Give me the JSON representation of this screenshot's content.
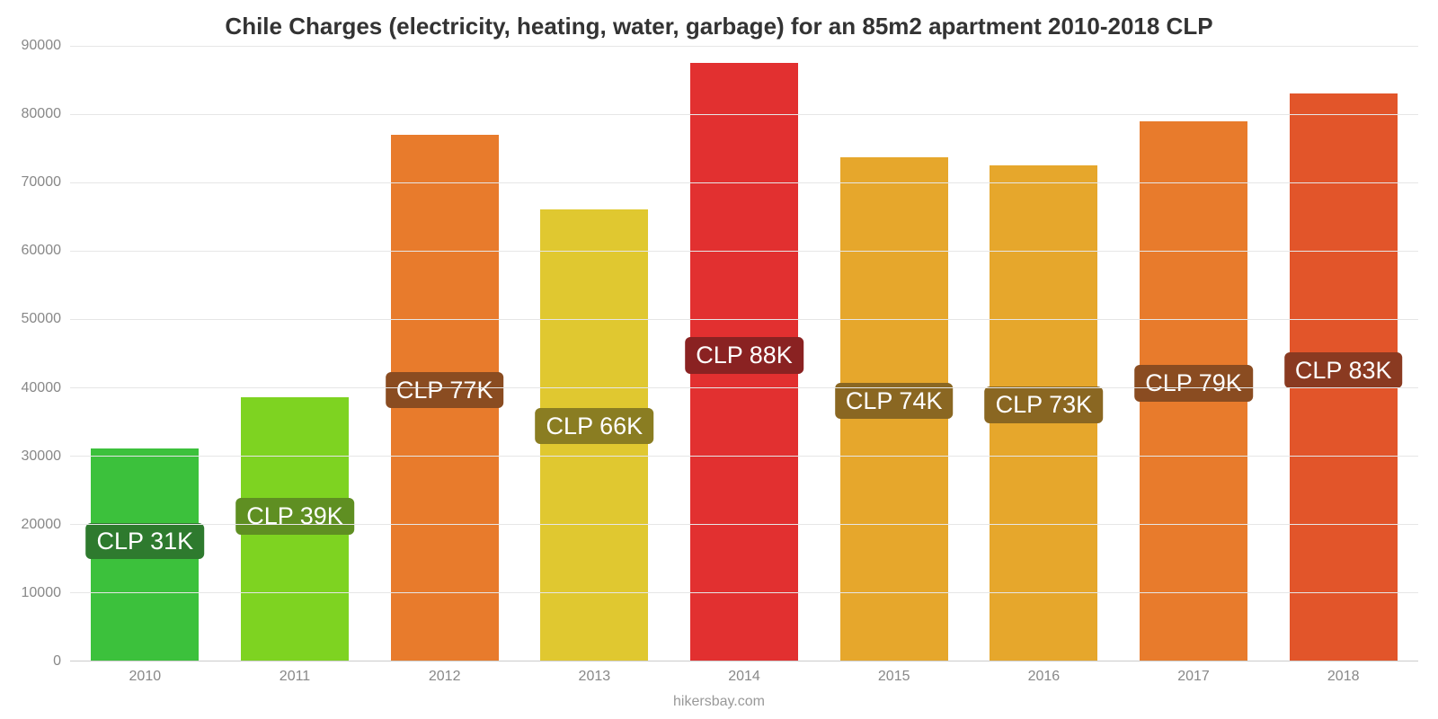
{
  "chart": {
    "type": "bar",
    "title": "Chile Charges (electricity, heating, water, garbage) for an 85m2 apartment 2010-2018 CLP",
    "title_fontsize": 26,
    "title_color": "#333333",
    "footer": "hikersbay.com",
    "footer_fontsize": 16,
    "footer_color": "#999999",
    "background_color": "#ffffff",
    "grid_color": "#e6e6e6",
    "axis_line_color": "#cccccc",
    "tick_label_color": "#888888",
    "tick_label_fontsize": 16,
    "ylim": [
      0,
      90000
    ],
    "ytick_step": 10000,
    "yticks": [
      0,
      10000,
      20000,
      30000,
      40000,
      50000,
      60000,
      70000,
      80000,
      90000
    ],
    "categories": [
      "2010",
      "2011",
      "2012",
      "2013",
      "2014",
      "2015",
      "2016",
      "2017",
      "2018"
    ],
    "values": [
      31000,
      38500,
      77000,
      66000,
      87500,
      73700,
      72500,
      79000,
      83000
    ],
    "bar_labels": [
      "CLP 31K",
      "CLP 39K",
      "CLP 77K",
      "CLP 66K",
      "CLP 88K",
      "CLP 74K",
      "CLP 73K",
      "CLP 79K",
      "CLP 83K"
    ],
    "bar_colors": [
      "#3cc13c",
      "#7ed321",
      "#e87b2c",
      "#e0c830",
      "#e23030",
      "#e6a72c",
      "#e6a72c",
      "#e87b2c",
      "#e2552a"
    ],
    "label_bg_colors": [
      "#2e7a2e",
      "#5f8f22",
      "#8a4c21",
      "#8a7d22",
      "#8a2222",
      "#8a6722",
      "#8a6722",
      "#8a4c21",
      "#8a3a21"
    ],
    "bar_width": 0.72,
    "bar_label_color": "#ffffff",
    "bar_label_fontsize": 27
  }
}
